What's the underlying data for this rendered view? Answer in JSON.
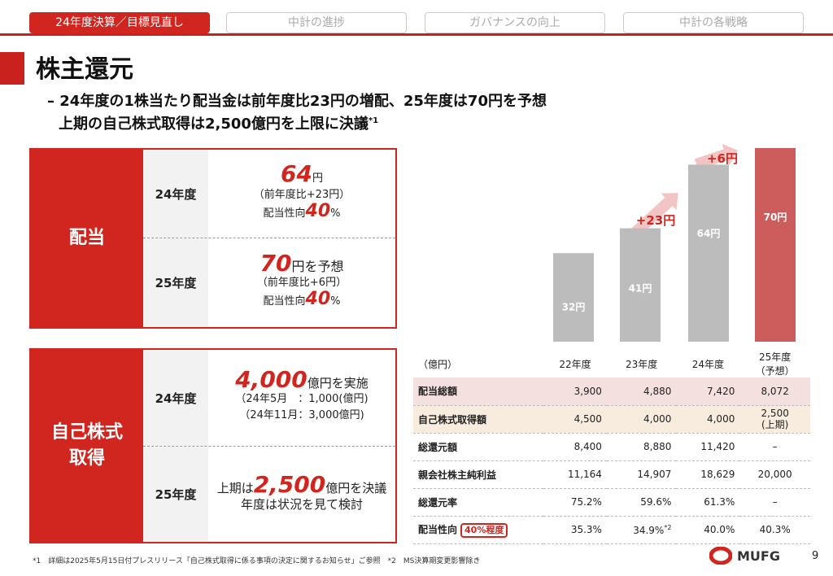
{
  "tabs": [
    "24年度決算／目標見直し",
    "中計の進捗",
    "ガバナンスの向上",
    "中計の各戦略"
  ],
  "title": "株主還元",
  "subtitle1": "– 24年度の1株当たり配当金は前年度比23円の増配、25年度は70円を予想",
  "subtitle2": "上期の自己株式取得は2,500億円を上限に決議",
  "subtitle2_sup": "*1",
  "dividend": {
    "label": "配当",
    "y24": {
      "year": "24年度",
      "amount": "64",
      "unit": "円",
      "note": "（前年度比+23円）",
      "ratio_label": "配当性向",
      "ratio": "40",
      "pct": "%"
    },
    "y25": {
      "year": "25年度",
      "amount": "70",
      "unit": "円を予想",
      "note": "（前年度比+6円）",
      "ratio_label": "配当性向",
      "ratio": "40",
      "pct": "%"
    }
  },
  "buyback": {
    "label1": "自己株式",
    "label2": "取得",
    "y24": {
      "year": "24年度",
      "amount": "4,000",
      "unit": "億円を実施",
      "line1": "（24年5月　：1,000(億円)",
      "line2": "（24年11月：3,000億円)"
    },
    "y25": {
      "year": "25年度",
      "pre": "上期は",
      "amount": "2,500",
      "unit": "億円を決議",
      "line": "年度は状況を見て検討"
    }
  },
  "chart_data": {
    "type": "bar",
    "categories": [
      "22年度",
      "23年度",
      "24年度",
      "25年度（予想）"
    ],
    "values": [
      32,
      41,
      64,
      70
    ],
    "labels": [
      "32円",
      "41円",
      "64円",
      "70円"
    ],
    "increments": [
      "+23円",
      "+6円"
    ],
    "colors": {
      "actual": "#bcbcbc",
      "forecast": "#cd5c5c",
      "arrow": "#f3c4c4",
      "accent": "#d1261f"
    }
  },
  "table": {
    "unit": "（億円）",
    "headers": [
      "22年度",
      "23年度",
      "24年度",
      "25年度"
    ],
    "header_sub": "（予想）",
    "rows": [
      {
        "label": "配当総額",
        "values": [
          "3,900",
          "4,880",
          "7,420",
          "8,072"
        ]
      },
      {
        "label": "自己株式取得額",
        "values": [
          "4,500",
          "4,000",
          "4,000",
          "2,500"
        ],
        "last_sub": "(上期)"
      },
      {
        "label": "総還元額",
        "values": [
          "8,400",
          "8,880",
          "11,420",
          "–"
        ]
      },
      {
        "label": "親会社株主純利益",
        "values": [
          "11,164",
          "14,907",
          "18,629",
          "20,000"
        ]
      },
      {
        "label": "総還元率",
        "values": [
          "75.2%",
          "59.6%",
          "61.3%",
          "–"
        ]
      },
      {
        "label": "配当性向",
        "tag": "40%程度",
        "values": [
          "35.3%",
          "34.9%",
          "40.0%",
          "40.3%"
        ],
        "sup": "*2"
      }
    ]
  },
  "footnote": "*1　詳細は2025年5月15日付プレスリリース「自己株式取得に係る事項の決定に関するお知らせ」ご参照　*2　MS決算期変更影響除き",
  "logo": "MUFG",
  "page": "9"
}
